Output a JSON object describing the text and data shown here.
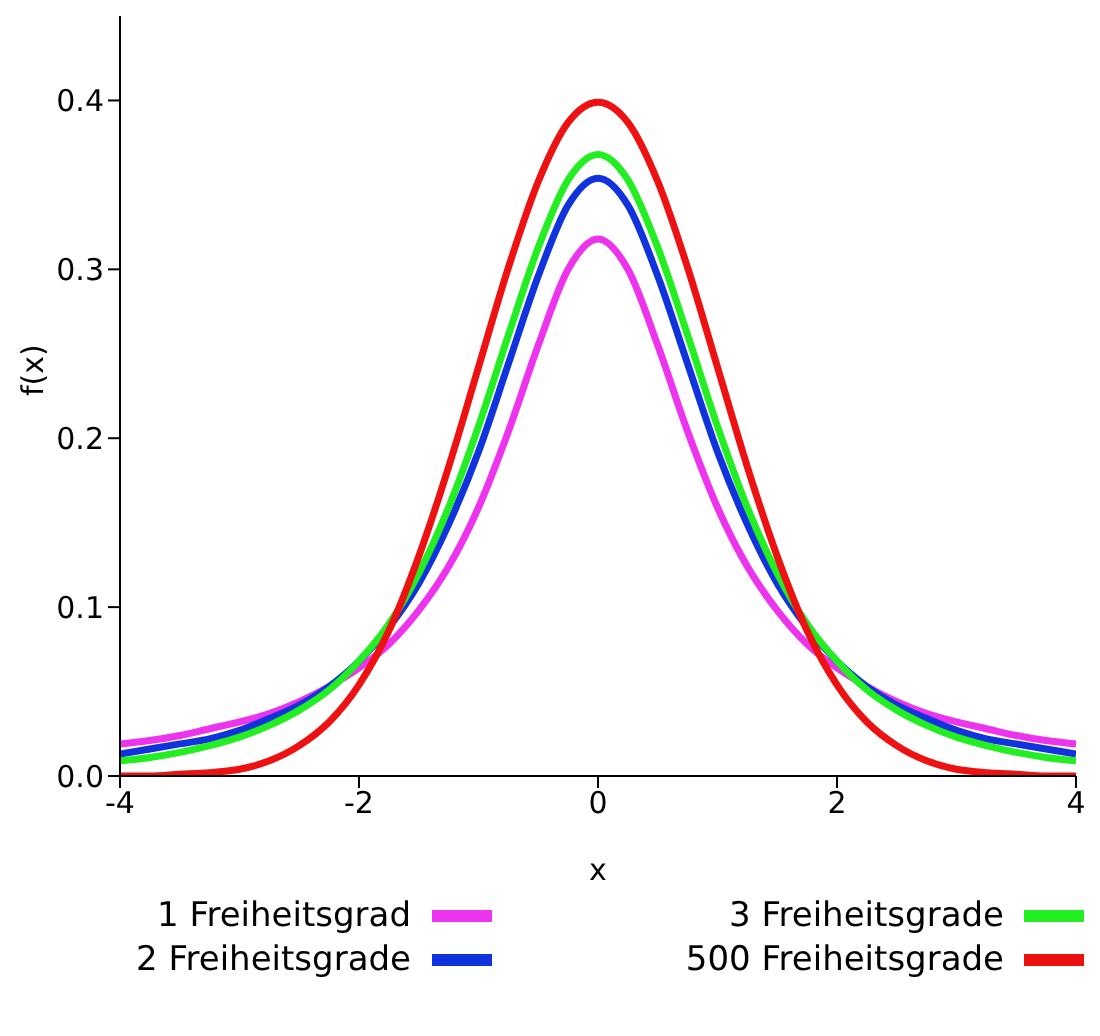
{
  "chart_data": {
    "type": "line",
    "xlabel": "x",
    "ylabel": "f(x)",
    "x": [
      -4,
      -3.75,
      -3.5,
      -3.25,
      -3,
      -2.75,
      -2.5,
      -2.25,
      -2,
      -1.75,
      -1.5,
      -1.25,
      -1,
      -0.75,
      -0.5,
      -0.25,
      0,
      0.25,
      0.5,
      0.75,
      1,
      1.25,
      1.5,
      1.75,
      2,
      2.25,
      2.5,
      2.75,
      3,
      3.25,
      3.5,
      3.75,
      4
    ],
    "series": [
      {
        "name": "1 Freiheitsgrad",
        "color": "#ee33ee",
        "values": [
          0.019,
          0.021,
          0.024,
          0.028,
          0.032,
          0.037,
          0.044,
          0.053,
          0.064,
          0.078,
          0.098,
          0.124,
          0.159,
          0.204,
          0.255,
          0.3,
          0.318,
          0.3,
          0.255,
          0.204,
          0.159,
          0.124,
          0.098,
          0.078,
          0.064,
          0.053,
          0.044,
          0.037,
          0.032,
          0.028,
          0.024,
          0.021,
          0.019
        ]
      },
      {
        "name": "2 Freiheitsgrade",
        "color": "#1133dd",
        "values": [
          0.013,
          0.016,
          0.019,
          0.022,
          0.027,
          0.034,
          0.042,
          0.053,
          0.068,
          0.088,
          0.114,
          0.149,
          0.192,
          0.244,
          0.296,
          0.338,
          0.354,
          0.338,
          0.296,
          0.244,
          0.192,
          0.149,
          0.114,
          0.088,
          0.068,
          0.053,
          0.042,
          0.034,
          0.027,
          0.022,
          0.019,
          0.016,
          0.013
        ]
      },
      {
        "name": "3 Freiheitsgrade",
        "color": "#22ee22",
        "values": [
          0.009,
          0.011,
          0.014,
          0.018,
          0.023,
          0.03,
          0.039,
          0.051,
          0.068,
          0.09,
          0.12,
          0.159,
          0.207,
          0.261,
          0.313,
          0.353,
          0.368,
          0.353,
          0.313,
          0.261,
          0.207,
          0.159,
          0.12,
          0.09,
          0.068,
          0.051,
          0.039,
          0.03,
          0.023,
          0.018,
          0.014,
          0.011,
          0.009
        ]
      },
      {
        "name": "500 Freiheitsgrade",
        "color": "#ee1111",
        "values": [
          0.0,
          0.0,
          0.001,
          0.002,
          0.004,
          0.009,
          0.018,
          0.032,
          0.054,
          0.086,
          0.13,
          0.183,
          0.242,
          0.301,
          0.352,
          0.387,
          0.399,
          0.387,
          0.352,
          0.301,
          0.242,
          0.183,
          0.13,
          0.086,
          0.054,
          0.032,
          0.018,
          0.009,
          0.004,
          0.002,
          0.001,
          0.0,
          0.0
        ]
      }
    ],
    "xlim": [
      -4,
      4
    ],
    "xticks": [
      -4,
      -2,
      0,
      2,
      4
    ],
    "ylim": [
      0,
      0.45
    ],
    "yticks": [
      {
        "value": 0,
        "label": "0.0"
      },
      {
        "value": 0.1,
        "label": "0.1"
      },
      {
        "value": 0.2,
        "label": "0.2"
      },
      {
        "value": 0.3,
        "label": "0.3"
      },
      {
        "value": 0.4,
        "label": "0.4"
      }
    ],
    "grid": false,
    "legend": "bottom",
    "marker": "none",
    "line_style": "solid"
  }
}
